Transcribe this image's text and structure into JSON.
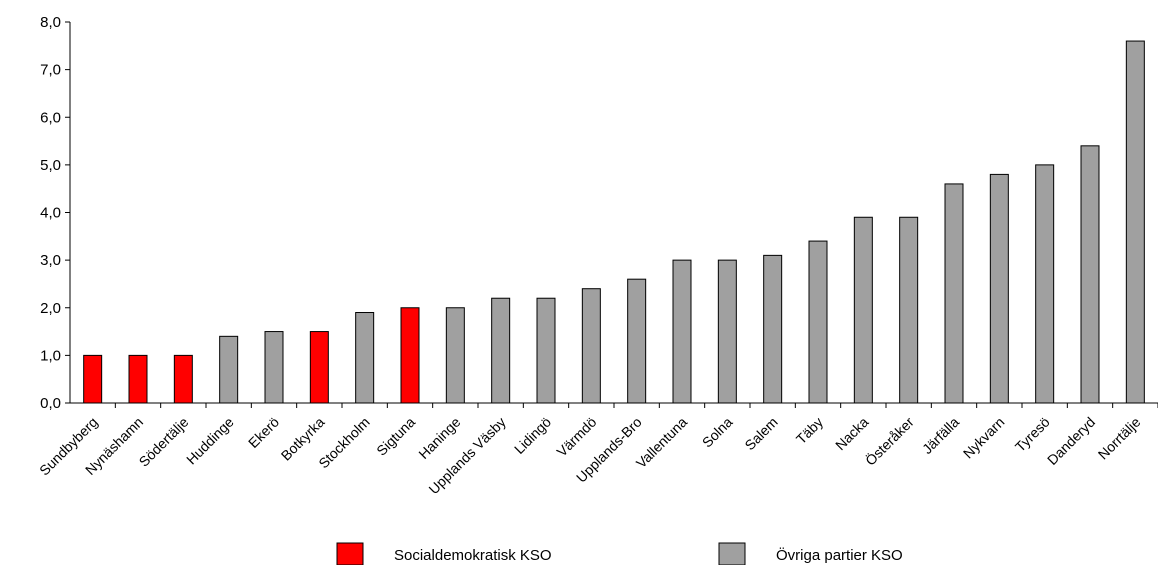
{
  "chart_data": {
    "type": "bar",
    "title": "",
    "xlabel": "",
    "ylabel": "",
    "ylim": [
      0,
      8
    ],
    "yticks": [
      "0,0",
      "1,0",
      "2,0",
      "3,0",
      "4,0",
      "5,0",
      "6,0",
      "7,0",
      "8,0"
    ],
    "categories": [
      "Sundbyberg",
      "Nynäshamn",
      "Södertälje",
      "Huddinge",
      "Ekerö",
      "Botkyrka",
      "Stockholm",
      "Sigtuna",
      "Haninge",
      "Upplands Väsby",
      "Lidingö",
      "Värmdö",
      "Upplands-Bro",
      "Vallentuna",
      "Solna",
      "Salem",
      "Täby",
      "Nacka",
      "Österåker",
      "Järfälla",
      "Nykvarn",
      "Tyresö",
      "Danderyd",
      "Norrtälje"
    ],
    "values": [
      1.0,
      1.0,
      1.0,
      1.4,
      1.5,
      1.5,
      1.9,
      2.0,
      2.0,
      2.2,
      2.2,
      2.4,
      2.6,
      3.0,
      3.0,
      3.1,
      3.4,
      3.9,
      3.9,
      4.6,
      4.8,
      5.0,
      5.4,
      7.6
    ],
    "groups": [
      "sd",
      "sd",
      "sd",
      "ov",
      "ov",
      "sd",
      "ov",
      "sd",
      "ov",
      "ov",
      "ov",
      "ov",
      "ov",
      "ov",
      "ov",
      "ov",
      "ov",
      "ov",
      "ov",
      "ov",
      "ov",
      "ov",
      "ov",
      "ov"
    ],
    "grid": false,
    "legend_position": "bottom",
    "legend": [
      {
        "key": "sd",
        "label": "Socialdemokratisk KSO",
        "color": "#ff0000"
      },
      {
        "key": "ov",
        "label": "Övriga partier KSO",
        "color": "#a0a0a0"
      }
    ]
  }
}
